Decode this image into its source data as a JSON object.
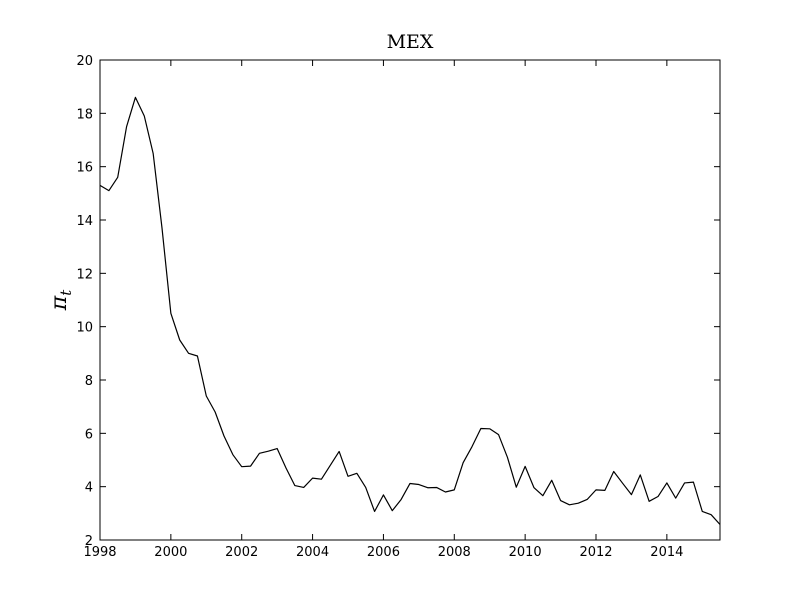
{
  "chart_data": {
    "type": "line",
    "title": "MEX",
    "xlabel": "",
    "ylabel": "π_t",
    "ylabel_main": "π",
    "ylabel_sub": "t",
    "xlim": [
      1998,
      2015.5
    ],
    "ylim": [
      2,
      20
    ],
    "xticks": [
      1998,
      2000,
      2002,
      2004,
      2006,
      2008,
      2010,
      2012,
      2014
    ],
    "yticks": [
      2,
      4,
      6,
      8,
      10,
      12,
      14,
      16,
      18,
      20
    ],
    "grid": false,
    "line_color": "#000000",
    "series": [
      {
        "x": [
          1998.0,
          1998.25,
          1998.5,
          1998.75,
          1999.0,
          1999.25,
          1999.5,
          1999.75,
          2000.0,
          2000.25,
          2000.5,
          2000.75,
          2001.0,
          2001.25,
          2001.5,
          2001.75,
          2002.0,
          2002.25,
          2002.5,
          2002.75,
          2003.0,
          2003.25,
          2003.5,
          2003.75,
          2004.0,
          2004.25,
          2004.5,
          2004.75,
          2005.0,
          2005.25,
          2005.5,
          2005.75,
          2006.0,
          2006.25,
          2006.5,
          2006.75,
          2007.0,
          2007.25,
          2007.5,
          2007.75,
          2008.0,
          2008.25,
          2008.5,
          2008.75,
          2009.0,
          2009.25,
          2009.5,
          2009.75,
          2010.0,
          2010.25,
          2010.5,
          2010.75,
          2011.0,
          2011.25,
          2011.5,
          2011.75,
          2012.0,
          2012.25,
          2012.5,
          2012.75,
          2013.0,
          2013.25,
          2013.5,
          2013.75,
          2014.0,
          2014.25,
          2014.5,
          2014.75,
          2015.0,
          2015.25,
          2015.5
        ],
        "values": [
          15.3,
          15.1,
          15.6,
          17.5,
          18.6,
          17.9,
          16.5,
          13.7,
          10.5,
          9.5,
          9.0,
          8.9,
          7.4,
          6.8,
          5.9,
          5.2,
          4.75,
          4.77,
          5.25,
          5.33,
          5.43,
          4.7,
          4.04,
          3.97,
          4.32,
          4.28,
          4.8,
          5.32,
          4.39,
          4.5,
          3.97,
          3.07,
          3.69,
          3.1,
          3.52,
          4.12,
          4.08,
          3.96,
          3.97,
          3.8,
          3.88,
          4.9,
          5.5,
          6.18,
          6.17,
          5.95,
          5.1,
          3.98,
          4.76,
          3.96,
          3.66,
          4.24,
          3.48,
          3.32,
          3.38,
          3.52,
          3.88,
          3.86,
          4.57,
          4.13,
          3.7,
          4.44,
          3.45,
          3.63,
          4.14,
          3.57,
          4.14,
          4.17,
          3.07,
          2.95,
          2.58
        ]
      }
    ]
  }
}
